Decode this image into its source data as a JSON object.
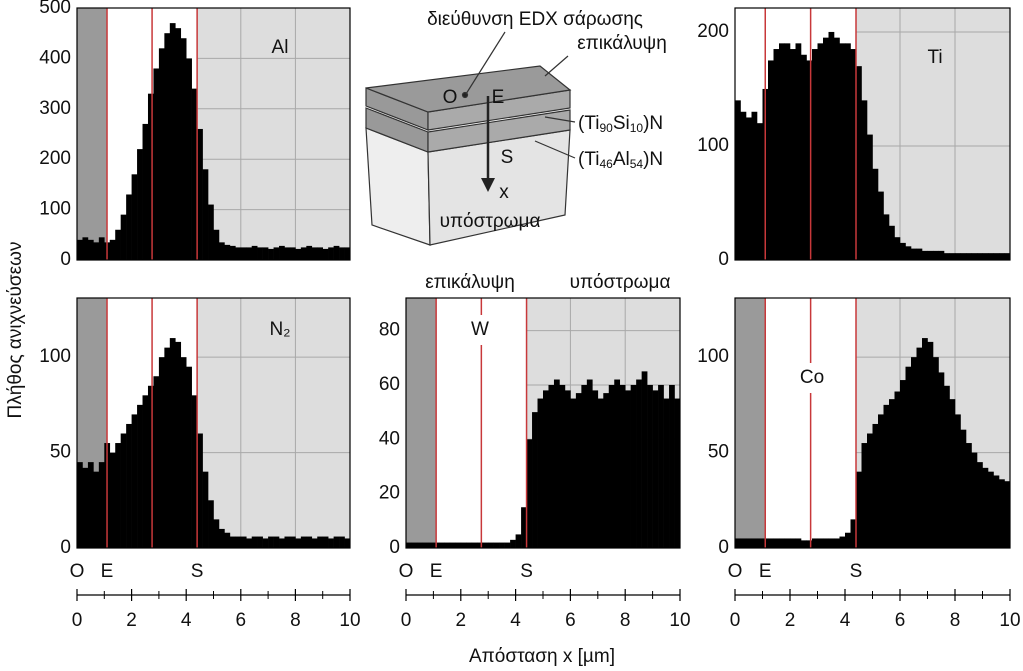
{
  "chart_data": [
    {
      "type": "histogram",
      "title": "Al",
      "xlim": [
        0,
        10
      ],
      "ylim": [
        0,
        500
      ],
      "yticks": [
        0,
        100,
        200,
        300,
        400,
        500
      ],
      "bins": [
        0,
        0.2,
        0.4,
        0.6,
        0.8,
        1,
        1.2,
        1.4,
        1.6,
        1.8,
        2,
        2.2,
        2.4,
        2.6,
        2.8,
        3,
        3.2,
        3.4,
        3.6,
        3.8,
        4,
        4.2,
        4.4,
        4.6,
        4.8,
        5,
        5.2,
        5.4,
        5.6,
        5.8,
        6,
        6.2,
        6.4,
        6.6,
        6.8,
        7,
        7.2,
        7.4,
        7.6,
        7.8,
        8,
        8.2,
        8.4,
        8.6,
        8.8,
        9,
        9.2,
        9.4,
        9.6,
        9.8,
        10
      ],
      "values": [
        40,
        45,
        40,
        35,
        45,
        35,
        40,
        60,
        90,
        130,
        170,
        220,
        270,
        330,
        380,
        420,
        450,
        470,
        460,
        440,
        400,
        340,
        260,
        180,
        110,
        60,
        35,
        30,
        28,
        25,
        25,
        25,
        28,
        25,
        25,
        22,
        25,
        28,
        25,
        25,
        22,
        25,
        28,
        25,
        25,
        22,
        25,
        28,
        25,
        25
      ],
      "color": "#000000",
      "regions": [
        1.1,
        4.4
      ],
      "region_colors": [
        "#9a9a9a",
        "#ffffff",
        "#dddddd"
      ],
      "lines": [
        1.1,
        2.75,
        4.4
      ],
      "line_color": "#c8383a",
      "grid": true
    },
    {
      "type": "histogram",
      "title": "Ti",
      "xlim": [
        0,
        10
      ],
      "ylim": [
        0,
        221
      ],
      "yticks": [
        0,
        100,
        200
      ],
      "bins": [
        0,
        0.2,
        0.4,
        0.6,
        0.8,
        1,
        1.2,
        1.4,
        1.6,
        1.8,
        2,
        2.2,
        2.4,
        2.6,
        2.8,
        3,
        3.2,
        3.4,
        3.6,
        3.8,
        4,
        4.2,
        4.4,
        4.6,
        4.8,
        5,
        5.2,
        5.4,
        5.6,
        5.8,
        6,
        6.2,
        6.4,
        6.6,
        6.8,
        7,
        7.2,
        7.4,
        7.6,
        7.8,
        8,
        8.2,
        8.4,
        8.6,
        8.8,
        9,
        9.2,
        9.4,
        9.6,
        9.8,
        10
      ],
      "values": [
        140,
        130,
        125,
        130,
        120,
        150,
        175,
        185,
        190,
        190,
        185,
        190,
        180,
        175,
        185,
        190,
        195,
        200,
        195,
        190,
        190,
        185,
        170,
        140,
        110,
        80,
        60,
        40,
        30,
        20,
        15,
        12,
        10,
        10,
        8,
        8,
        8,
        8,
        6,
        6,
        6,
        6,
        6,
        6,
        6,
        6,
        6,
        6,
        6,
        6
      ],
      "color": "#000000",
      "regions": [
        1.1,
        4.4
      ],
      "region_colors": [
        "#ffffff",
        "#ffffff",
        "#dddddd"
      ],
      "lines": [
        1.1,
        2.75,
        4.4
      ],
      "line_color": "#c8383a",
      "grid": true
    },
    {
      "type": "histogram",
      "title": "N₂",
      "xlim": [
        0,
        10
      ],
      "ylim": [
        0,
        131
      ],
      "yticks": [
        0,
        50,
        100
      ],
      "xticks": [
        0,
        2,
        4,
        6,
        8,
        10
      ],
      "xminorticks": [
        1,
        3,
        5,
        7,
        9
      ],
      "bins": [
        0,
        0.2,
        0.4,
        0.6,
        0.8,
        1,
        1.2,
        1.4,
        1.6,
        1.8,
        2,
        2.2,
        2.4,
        2.6,
        2.8,
        3,
        3.2,
        3.4,
        3.6,
        3.8,
        4,
        4.2,
        4.4,
        4.6,
        4.8,
        5,
        5.2,
        5.4,
        5.6,
        5.8,
        6,
        6.2,
        6.4,
        6.6,
        6.8,
        7,
        7.2,
        7.4,
        7.6,
        7.8,
        8,
        8.2,
        8.4,
        8.6,
        8.8,
        9,
        9.2,
        9.4,
        9.6,
        9.8,
        10
      ],
      "values": [
        45,
        42,
        45,
        40,
        45,
        55,
        50,
        55,
        60,
        65,
        70,
        75,
        80,
        85,
        90,
        100,
        105,
        110,
        108,
        100,
        95,
        80,
        60,
        40,
        25,
        15,
        10,
        8,
        6,
        6,
        6,
        5,
        6,
        6,
        5,
        6,
        6,
        5,
        6,
        6,
        5,
        6,
        6,
        5,
        6,
        6,
        5,
        6,
        6,
        5
      ],
      "color": "#000000",
      "regions": [
        1.1,
        4.4
      ],
      "region_colors": [
        "#9a9a9a",
        "#ffffff",
        "#dddddd"
      ],
      "lines": [
        1.1,
        2.75,
        4.4
      ],
      "line_color": "#c8383a",
      "grid": true,
      "point_labels": [
        {
          "value": 0,
          "label": "O"
        },
        {
          "value": 1.1,
          "label": "E"
        },
        {
          "value": 4.4,
          "label": "S"
        }
      ]
    },
    {
      "type": "histogram",
      "title": "W",
      "xlim": [
        0,
        10
      ],
      "ylim": [
        0,
        92
      ],
      "yticks": [
        0,
        20,
        40,
        60,
        80
      ],
      "xticks": [
        0,
        2,
        4,
        6,
        8,
        10
      ],
      "xminorticks": [
        1,
        3,
        5,
        7,
        9
      ],
      "annotations": [
        "επικάλυψη",
        "υπόστρωμα"
      ],
      "bins": [
        0,
        0.2,
        0.4,
        0.6,
        0.8,
        1,
        1.2,
        1.4,
        1.6,
        1.8,
        2,
        2.2,
        2.4,
        2.6,
        2.8,
        3,
        3.2,
        3.4,
        3.6,
        3.8,
        4,
        4.2,
        4.4,
        4.6,
        4.8,
        5,
        5.2,
        5.4,
        5.6,
        5.8,
        6,
        6.2,
        6.4,
        6.6,
        6.8,
        7,
        7.2,
        7.4,
        7.6,
        7.8,
        8,
        8.2,
        8.4,
        8.6,
        8.8,
        9,
        9.2,
        9.4,
        9.6,
        9.8,
        10
      ],
      "values": [
        2,
        2,
        2,
        2,
        2,
        2,
        2,
        2,
        2,
        2,
        2,
        2,
        2,
        2,
        2,
        2,
        2,
        2,
        2,
        3,
        5,
        15,
        40,
        50,
        55,
        58,
        60,
        62,
        60,
        58,
        55,
        57,
        60,
        62,
        58,
        55,
        57,
        60,
        62,
        60,
        58,
        60,
        62,
        65,
        60,
        58,
        60,
        55,
        60,
        55
      ],
      "color": "#000000",
      "regions": [
        1.1,
        4.4
      ],
      "region_colors": [
        "#9a9a9a",
        "#ffffff",
        "#dddddd"
      ],
      "lines": [
        1.1,
        2.75,
        4.4
      ],
      "line_color": "#c8383a",
      "grid": true,
      "point_labels": [
        {
          "value": 0,
          "label": "O"
        },
        {
          "value": 1.1,
          "label": "E"
        },
        {
          "value": 4.4,
          "label": "S"
        }
      ]
    },
    {
      "type": "histogram",
      "title": "Co",
      "xlim": [
        0,
        10
      ],
      "ylim": [
        0,
        131
      ],
      "yticks": [
        0,
        50,
        100
      ],
      "xticks": [
        0,
        2,
        4,
        6,
        8,
        10
      ],
      "xminorticks": [
        1,
        3,
        5,
        7,
        9
      ],
      "bins": [
        0,
        0.2,
        0.4,
        0.6,
        0.8,
        1,
        1.2,
        1.4,
        1.6,
        1.8,
        2,
        2.2,
        2.4,
        2.6,
        2.8,
        3,
        3.2,
        3.4,
        3.6,
        3.8,
        4,
        4.2,
        4.4,
        4.6,
        4.8,
        5,
        5.2,
        5.4,
        5.6,
        5.8,
        6,
        6.2,
        6.4,
        6.6,
        6.8,
        7,
        7.2,
        7.4,
        7.6,
        7.8,
        8,
        8.2,
        8.4,
        8.6,
        8.8,
        9,
        9.2,
        9.4,
        9.6,
        9.8,
        10
      ],
      "values": [
        5,
        5,
        5,
        5,
        5,
        5,
        5,
        5,
        5,
        5,
        5,
        5,
        4,
        4,
        5,
        5,
        5,
        5,
        5,
        6,
        8,
        15,
        40,
        55,
        60,
        65,
        70,
        75,
        78,
        82,
        88,
        95,
        100,
        105,
        110,
        108,
        100,
        92,
        85,
        78,
        70,
        62,
        55,
        50,
        45,
        42,
        40,
        38,
        36,
        35
      ],
      "color": "#000000",
      "regions": [
        1.1,
        4.4
      ],
      "region_colors": [
        "#9a9a9a",
        "#ffffff",
        "#dddddd"
      ],
      "lines": [
        1.1,
        2.75,
        4.4
      ],
      "line_color": "#c8383a",
      "grid": true,
      "point_labels": [
        {
          "value": 0,
          "label": "O"
        },
        {
          "value": 1.1,
          "label": "E"
        },
        {
          "value": 4.4,
          "label": "S"
        }
      ]
    }
  ],
  "y_label": "Πλήθος ανιχνεύσεων",
  "x_label": "Απόσταση x [µm]",
  "diagram": {
    "scan_direction": "διεύθυνση EDX σάρωσης",
    "coating": "επικάλυψη",
    "layer1": [
      "(Ti",
      "90",
      "Si",
      "10",
      ")N"
    ],
    "layer2": [
      "(Ti",
      "46",
      "Al",
      "54",
      ")N"
    ],
    "points": [
      "O",
      "E",
      "S",
      "x"
    ],
    "substrate": "υπόστρωμα"
  }
}
